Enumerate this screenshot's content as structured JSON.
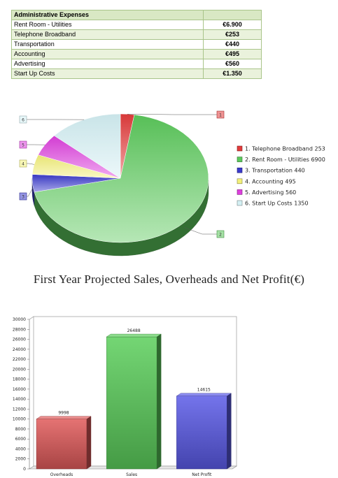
{
  "expense_table": {
    "header": {
      "label": "Administrative Expenses",
      "value": ""
    },
    "rows": [
      {
        "label": "Rent Room - Utilities",
        "value": "€6.900"
      },
      {
        "label": "Telephone Broadband",
        "value": "€253"
      },
      {
        "label": "Transportation",
        "value": "€440"
      },
      {
        "label": "Accounting",
        "value": "€495"
      },
      {
        "label": "Advertising",
        "value": "€560"
      },
      {
        "label": "Start Up Costs",
        "value": "€1.350"
      }
    ]
  },
  "chart_data": [
    {
      "type": "pie",
      "style": "3d",
      "slices": [
        {
          "callout": "1",
          "legend": "1. Telephone Broadband 253",
          "value": 253,
          "color": "#e23b3b"
        },
        {
          "callout": "2",
          "legend": "2. Rent Room - Utilities 6900",
          "value": 6900,
          "color": "#5cc95c"
        },
        {
          "callout": "3",
          "legend": "3. Transportation 440",
          "value": 440,
          "color": "#3a3acb"
        },
        {
          "callout": "4",
          "legend": "4. Accounting 495",
          "value": 495,
          "color": "#f3f07a"
        },
        {
          "callout": "5",
          "legend": "5. Advertising 560",
          "value": 560,
          "color": "#dd3fdd"
        },
        {
          "callout": "6",
          "legend": "6. Start Up Costs 1350",
          "value": 1350,
          "color": "#d4f0f4"
        }
      ],
      "legend_position": "right"
    },
    {
      "type": "bar",
      "style": "3d",
      "title": "First Year Projected Sales, Overheads and Net Profit(€)",
      "categories": [
        "Overheads",
        "Sales",
        "Net Profit"
      ],
      "values": [
        9998,
        26488,
        14615
      ],
      "colors": [
        "#e05a5a",
        "#5ccf5c",
        "#5b5be8"
      ],
      "ylim": [
        0,
        30000
      ],
      "yticks": [
        0,
        2000,
        4000,
        6000,
        8000,
        10000,
        12000,
        14000,
        16000,
        18000,
        20000,
        22000,
        24000,
        26000,
        28000,
        30000
      ],
      "grid": false
    }
  ]
}
